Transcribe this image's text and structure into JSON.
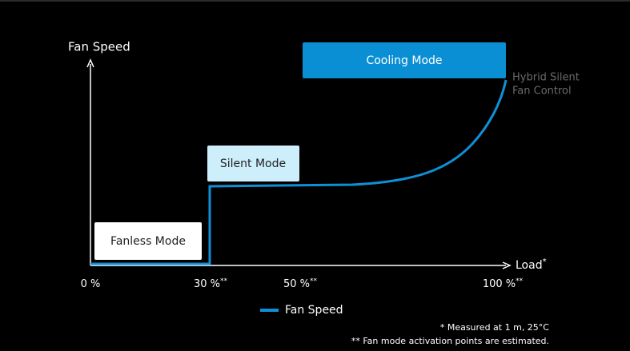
{
  "y_axis": {
    "label": "Fan Speed"
  },
  "x_axis": {
    "label": "Load",
    "label_note": "*",
    "ticks": [
      {
        "label": "0 %"
      },
      {
        "label": "30 %",
        "note": "**"
      },
      {
        "label": "50 %",
        "note": "**"
      },
      {
        "label": "100 %",
        "note": "**"
      }
    ]
  },
  "modes": [
    "Fanless Mode",
    "Silent Mode",
    "Cooling Mode"
  ],
  "annotation": [
    "Hybrid Silent",
    "Fan Control"
  ],
  "legend": "Fan Speed",
  "footnotes": [
    "* Measured at 1 m, 25°C",
    "** Fan mode activation points are estimated."
  ]
}
